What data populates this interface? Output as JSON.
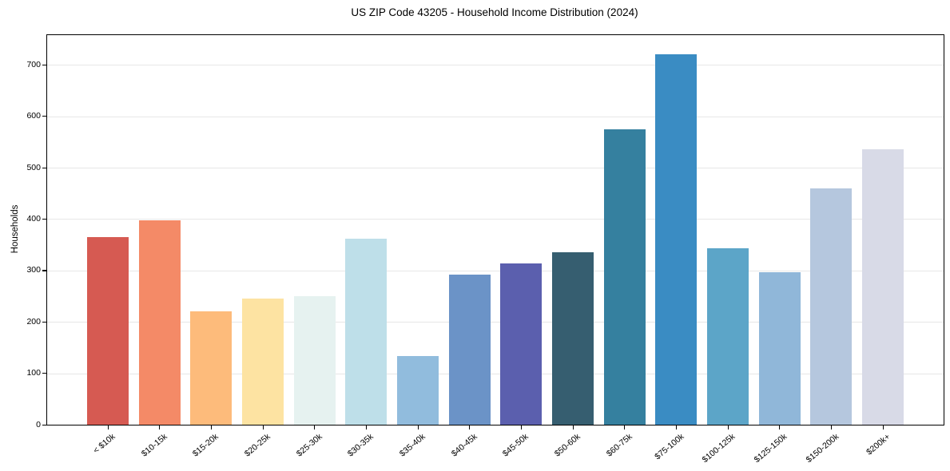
{
  "title": "US ZIP Code 43205 - Household Income Distribution (2024)",
  "chart_data": {
    "type": "bar",
    "title": "US ZIP Code 43205 - Household Income Distribution (2024)",
    "xlabel": "",
    "ylabel": "Households",
    "ylim": [
      0,
      758
    ],
    "yticks": [
      0,
      100,
      200,
      300,
      400,
      500,
      600,
      700
    ],
    "grid": true,
    "legend": "none",
    "categories": [
      "< $10k",
      "$10-15k",
      "$15-20k",
      "$20-25k",
      "$25-30k",
      "$30-35k",
      "$35-40k",
      "$40-45k",
      "$45-50k",
      "$50-60k",
      "$60-75k",
      "$75-100k",
      "$100-125k",
      "$125-150k",
      "$150-200k",
      "$200k+"
    ],
    "values": [
      365,
      397,
      220,
      245,
      250,
      362,
      134,
      292,
      314,
      336,
      575,
      720,
      343,
      296,
      459,
      536
    ],
    "bar_colors": [
      "#d65a52",
      "#f48a67",
      "#fdbb7b",
      "#fde3a2",
      "#e6f2f0",
      "#bedfe9",
      "#91bcdd",
      "#6b93c7",
      "#5b5fae",
      "#365e70",
      "#35809f",
      "#3a8cc3",
      "#5ca5c8",
      "#90b7d9",
      "#b5c7de",
      "#d8dae7"
    ]
  },
  "colors": {
    "background": "#ffffff",
    "grid": "#e7e7e7",
    "spine": "#000000",
    "text": "#000000"
  }
}
